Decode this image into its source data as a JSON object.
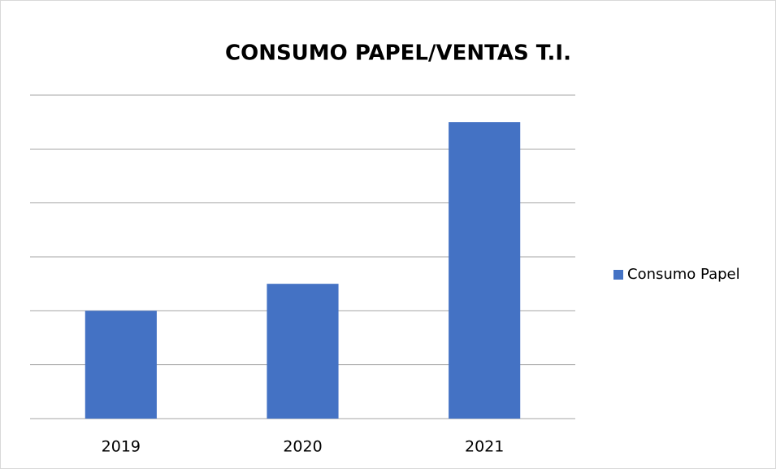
{
  "chart_data": {
    "type": "bar",
    "title": "CONSUMO PAPEL/VENTAS T.I.",
    "categories": [
      "2019",
      "2020",
      "2021"
    ],
    "series": [
      {
        "name": "Consumo Papel",
        "color": "#4472c4",
        "values": [
          2,
          2.5,
          5.5
        ]
      }
    ],
    "ylim": [
      0,
      6
    ],
    "yticks": [
      0,
      1,
      2,
      3,
      4,
      5,
      6
    ],
    "grid": true,
    "legend": "right"
  }
}
